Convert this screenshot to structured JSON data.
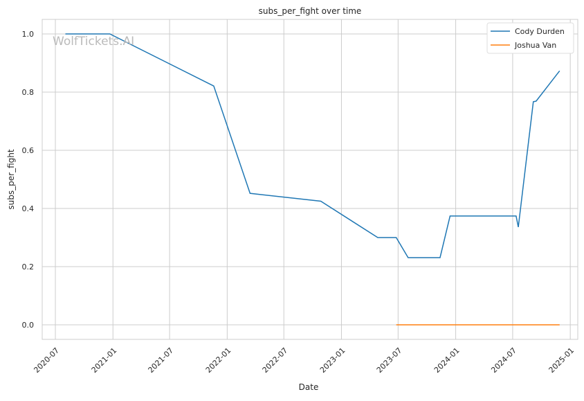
{
  "chart_data": {
    "type": "line",
    "title": "subs_per_fight over time",
    "xlabel": "Date",
    "ylabel": "subs_per_fight",
    "watermark": "WolfTickets.AI",
    "x_ticks": [
      "2020-07",
      "2021-01",
      "2021-07",
      "2022-01",
      "2022-07",
      "2023-01",
      "2023-07",
      "2024-01",
      "2024-07",
      "2025-01"
    ],
    "y_ticks": [
      0.0,
      0.2,
      0.4,
      0.6,
      0.8,
      1.0
    ],
    "ylim": [
      -0.05,
      1.05
    ],
    "xlim": [
      "2020-05-20",
      "2025-01-25"
    ],
    "grid": true,
    "legend_position": "top-right",
    "series": [
      {
        "name": "Cody Durden",
        "color": "#1f77b4",
        "points": [
          [
            "2020-08-02",
            1.0
          ],
          [
            "2020-12-22",
            1.0
          ],
          [
            "2021-11-19",
            0.821
          ],
          [
            "2022-03-15",
            0.452
          ],
          [
            "2022-10-27",
            0.425
          ],
          [
            "2023-04-27",
            0.3
          ],
          [
            "2023-06-25",
            0.3
          ],
          [
            "2023-08-02",
            0.231
          ],
          [
            "2023-11-12",
            0.231
          ],
          [
            "2023-12-14",
            0.374
          ],
          [
            "2024-07-12",
            0.374
          ],
          [
            "2024-07-19",
            0.336
          ],
          [
            "2024-09-05",
            0.767
          ],
          [
            "2024-09-14",
            0.769
          ],
          [
            "2024-11-28",
            0.873
          ]
        ]
      },
      {
        "name": "Joshua Van",
        "color": "#ff7f0e",
        "points": [
          [
            "2023-06-25",
            0.0
          ],
          [
            "2024-11-28",
            0.0
          ]
        ]
      }
    ]
  }
}
